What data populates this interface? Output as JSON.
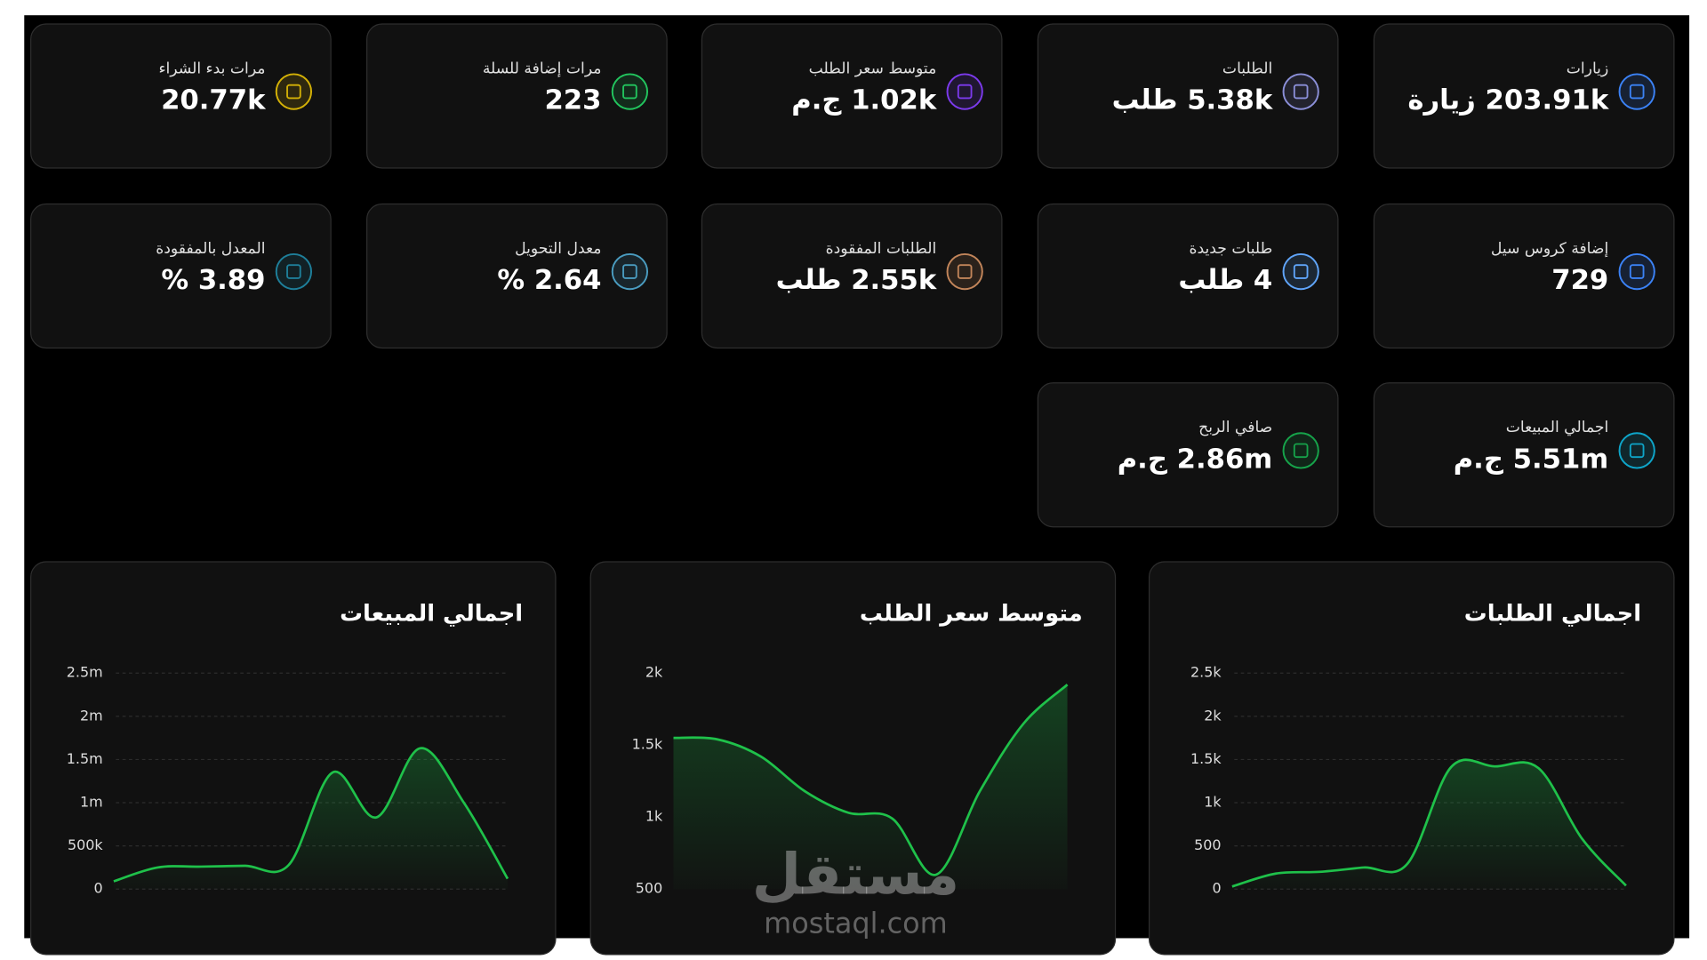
{
  "cards": [
    {
      "label": "زيارات",
      "value": "203.91k زيارة",
      "color": "#3b82f6"
    },
    {
      "label": "الطلبات",
      "value": "5.38k طلب",
      "color": "#8b8fd8"
    },
    {
      "label": "متوسط سعر الطلب",
      "value": "1.02k ج.م",
      "color": "#7c3aed"
    },
    {
      "label": "مرات إضافة للسلة",
      "value": "223",
      "color": "#22c55e"
    },
    {
      "label": "مرات بدء الشراء",
      "value": "20.77k",
      "color": "#d4b106"
    },
    {
      "label": "إضافة كروس سيل",
      "value": "729",
      "color": "#3b82f6"
    },
    {
      "label": "طلبات جديدة",
      "value": "4 طلب",
      "color": "#60a5fa"
    },
    {
      "label": "الطلبات المفقودة",
      "value": "2.55k طلب",
      "color": "#c2855a"
    },
    {
      "label": "معدل التحويل",
      "value": "2.64 %",
      "color": "#4a9cc0"
    },
    {
      "label": "المعدل بالمفقودة",
      "value": "3.89 %",
      "color": "#1e7f9a"
    },
    {
      "label": "اجمالي المبيعات",
      "value": "5.51m ج.م",
      "color": "#0ea5c9"
    },
    {
      "label": "صافي الربح",
      "value": "2.86m ج.م",
      "color": "#16a34a"
    }
  ],
  "chart_data": [
    {
      "type": "line",
      "title": "اجمالي الطلبات",
      "color": "#1fc14a",
      "grid": true,
      "values": [
        30,
        180,
        200,
        250,
        290,
        1410,
        1420,
        1400,
        580,
        40
      ],
      "ylim": [
        0,
        2500
      ],
      "yticks": [
        0,
        500,
        {
          "value": 1000,
          "label": "1k"
        },
        {
          "value": 1500,
          "label": "1.5k"
        },
        {
          "value": 2000,
          "label": "2k"
        },
        {
          "value": 2500,
          "label": "2.5k"
        }
      ]
    },
    {
      "type": "line",
      "title": "متوسط سعر الطلب",
      "color": "#1fc14a",
      "grid": false,
      "values": [
        1550,
        1540,
        1420,
        1180,
        1030,
        990,
        600,
        1180,
        1650,
        1920
      ],
      "ylim": [
        500,
        2000
      ],
      "yticks": [
        500,
        {
          "value": 1000,
          "label": "1k"
        },
        {
          "value": 1500,
          "label": "1.5k"
        },
        {
          "value": 2000,
          "label": "2k"
        }
      ]
    },
    {
      "type": "line",
      "title": "اجمالي المبيعات",
      "color": "#1fc14a",
      "grid": true,
      "values": [
        90000,
        250000,
        260000,
        270000,
        280000,
        1350000,
        830000,
        1630000,
        1000000,
        120000
      ],
      "ylim": [
        0,
        2500000
      ],
      "yticks": [
        0,
        {
          "value": 500000,
          "label": "500k"
        },
        {
          "value": 1000000,
          "label": "1m"
        },
        {
          "value": 1500000,
          "label": "1.5m"
        },
        {
          "value": 2000000,
          "label": "2m"
        },
        {
          "value": 2500000,
          "label": "2.5m"
        }
      ]
    }
  ],
  "watermark": {
    "logo": "مستقل",
    "url": "mostaql.com"
  }
}
